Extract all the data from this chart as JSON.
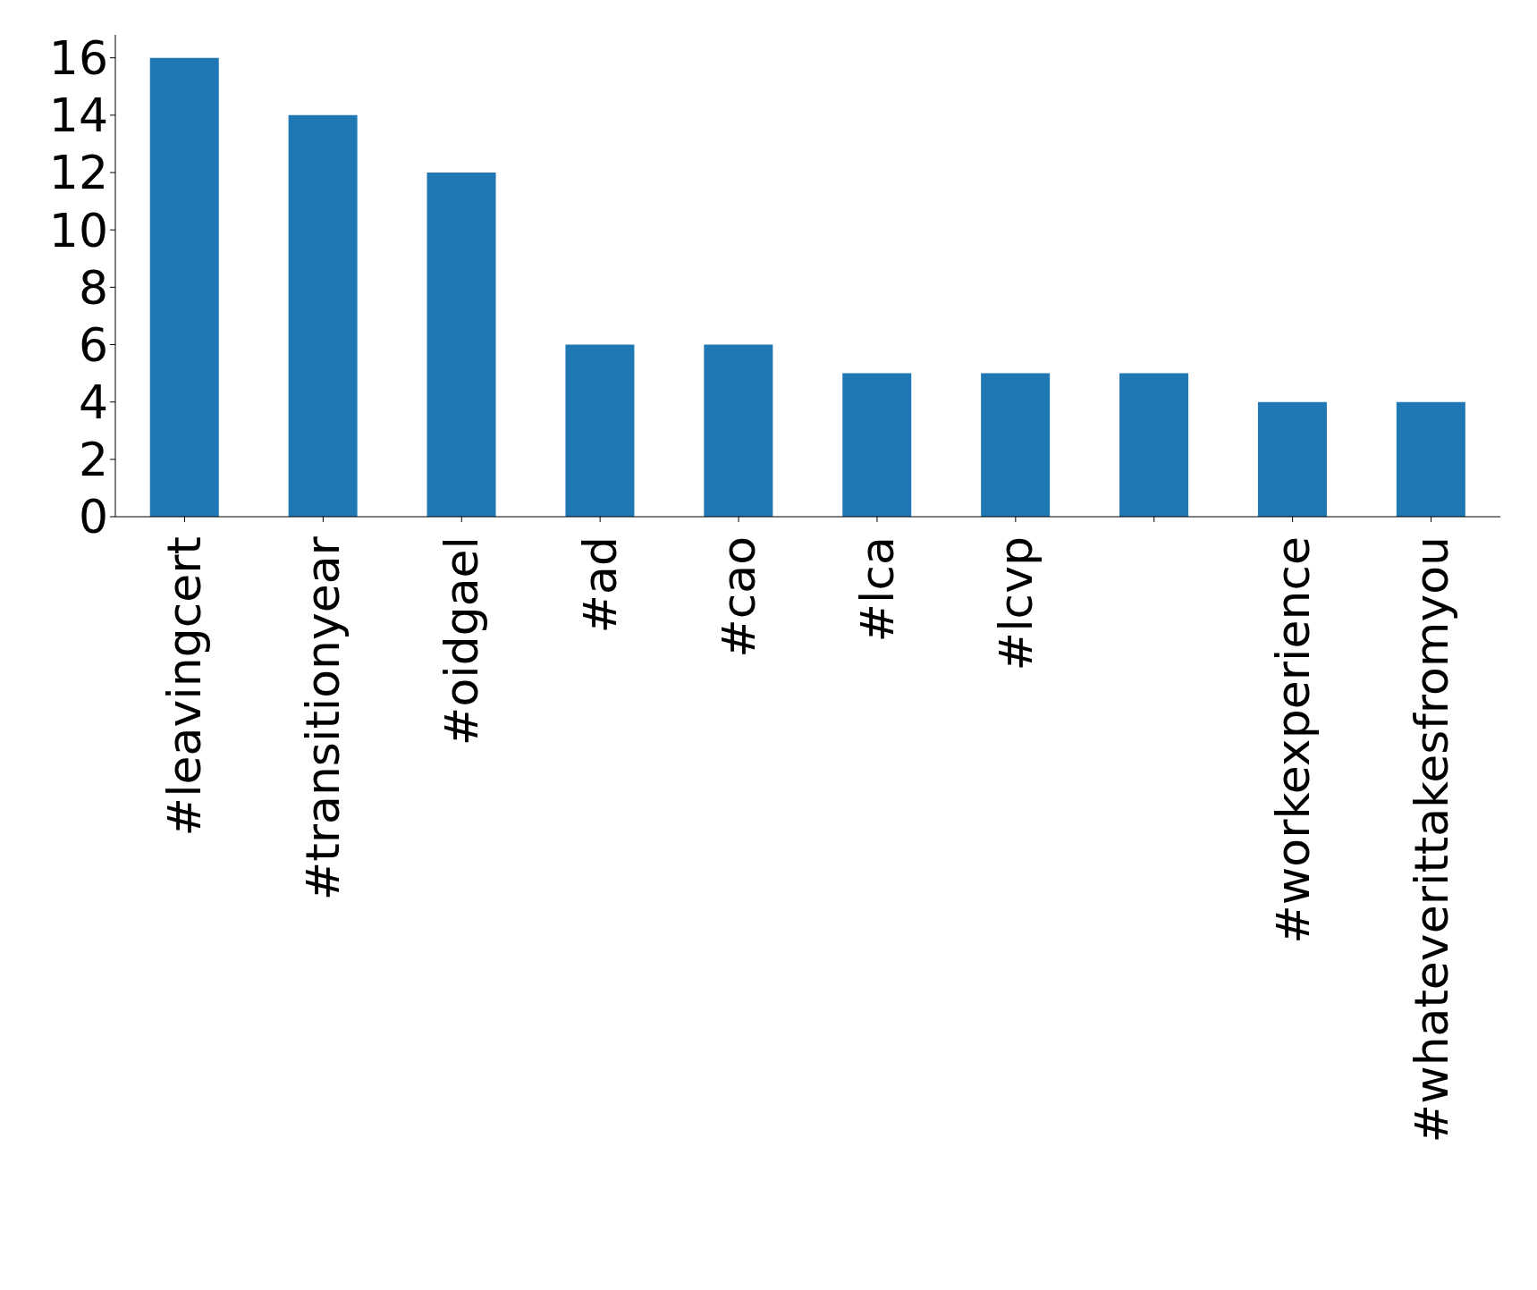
{
  "chart_data": {
    "type": "bar",
    "categories": [
      "#leavingcert",
      "#transitionyear",
      "#oidgael",
      "#ad",
      "#cao",
      "#lca",
      "#lcvp",
      null,
      "#workexperience",
      "#whateverittakesfromyou"
    ],
    "values": [
      16,
      14,
      12,
      6,
      6,
      5,
      5,
      5,
      4,
      4
    ],
    "color": "#1f77b4",
    "ylim": [
      0,
      16.8
    ],
    "yticks": [
      0,
      2,
      4,
      6,
      8,
      10,
      12,
      14,
      16
    ]
  }
}
